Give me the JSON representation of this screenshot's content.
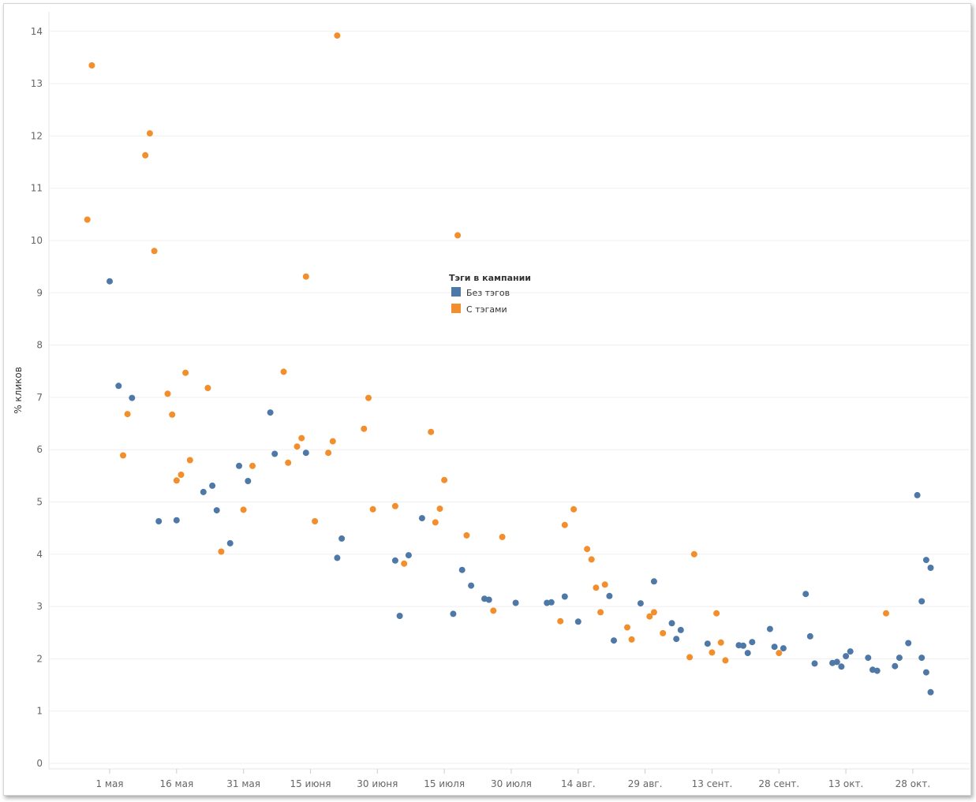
{
  "chart_data": {
    "type": "scatter",
    "title": "",
    "xlabel": "",
    "ylabel": "% кликов",
    "ylim": [
      0,
      14.4
    ],
    "y_ticks": [
      0,
      1,
      2,
      3,
      4,
      5,
      6,
      7,
      8,
      9,
      10,
      11,
      12,
      13,
      14
    ],
    "x_range": [
      "2019-04-20",
      "2019-11-08"
    ],
    "x_ticks": [
      {
        "date": "2019-05-01",
        "label": "1 мая"
      },
      {
        "date": "2019-05-16",
        "label": "16 мая"
      },
      {
        "date": "2019-05-31",
        "label": "31 мая"
      },
      {
        "date": "2019-06-15",
        "label": "15 июня"
      },
      {
        "date": "2019-06-30",
        "label": "30 июня"
      },
      {
        "date": "2019-07-15",
        "label": "15 июля"
      },
      {
        "date": "2019-07-30",
        "label": "30 июля"
      },
      {
        "date": "2019-08-14",
        "label": "14 авг."
      },
      {
        "date": "2019-08-29",
        "label": "29 авг."
      },
      {
        "date": "2019-09-13",
        "label": "13 сент."
      },
      {
        "date": "2019-09-28",
        "label": "28 сент."
      },
      {
        "date": "2019-10-13",
        "label": "13 окт."
      },
      {
        "date": "2019-10-28",
        "label": "28 окт."
      }
    ],
    "grid": true,
    "legend": {
      "title": "Тэги в кампании",
      "placement": "center"
    },
    "series": [
      {
        "name": "Без тэгов",
        "color": "#4e79a7",
        "points": [
          {
            "x": "2019-05-01",
            "y": 9.22
          },
          {
            "x": "2019-05-03",
            "y": 7.22
          },
          {
            "x": "2019-05-06",
            "y": 6.99
          },
          {
            "x": "2019-05-12",
            "y": 4.63
          },
          {
            "x": "2019-05-16",
            "y": 4.65
          },
          {
            "x": "2019-05-22",
            "y": 5.19
          },
          {
            "x": "2019-05-24",
            "y": 5.31
          },
          {
            "x": "2019-05-25",
            "y": 4.84
          },
          {
            "x": "2019-05-28",
            "y": 4.21
          },
          {
            "x": "2019-05-30",
            "y": 5.69
          },
          {
            "x": "2019-06-01",
            "y": 5.4
          },
          {
            "x": "2019-06-06",
            "y": 6.71
          },
          {
            "x": "2019-06-07",
            "y": 5.92
          },
          {
            "x": "2019-06-14",
            "y": 5.94
          },
          {
            "x": "2019-06-21",
            "y": 3.93
          },
          {
            "x": "2019-06-22",
            "y": 4.3
          },
          {
            "x": "2019-07-04",
            "y": 3.88
          },
          {
            "x": "2019-07-05",
            "y": 2.82
          },
          {
            "x": "2019-07-07",
            "y": 3.98
          },
          {
            "x": "2019-07-10",
            "y": 4.69
          },
          {
            "x": "2019-07-17",
            "y": 2.86
          },
          {
            "x": "2019-07-19",
            "y": 3.7
          },
          {
            "x": "2019-07-21",
            "y": 3.4
          },
          {
            "x": "2019-07-24",
            "y": 3.15
          },
          {
            "x": "2019-07-25",
            "y": 3.13
          },
          {
            "x": "2019-07-31",
            "y": 3.07
          },
          {
            "x": "2019-08-07",
            "y": 3.07
          },
          {
            "x": "2019-08-08",
            "y": 3.08
          },
          {
            "x": "2019-08-11",
            "y": 3.19
          },
          {
            "x": "2019-08-14",
            "y": 2.71
          },
          {
            "x": "2019-08-21",
            "y": 3.2
          },
          {
            "x": "2019-08-22",
            "y": 2.35
          },
          {
            "x": "2019-08-28",
            "y": 3.06
          },
          {
            "x": "2019-08-31",
            "y": 3.48
          },
          {
            "x": "2019-09-04",
            "y": 2.68
          },
          {
            "x": "2019-09-05",
            "y": 2.38
          },
          {
            "x": "2019-09-06",
            "y": 2.55
          },
          {
            "x": "2019-09-12",
            "y": 2.29
          },
          {
            "x": "2019-09-19",
            "y": 2.26
          },
          {
            "x": "2019-09-20",
            "y": 2.25
          },
          {
            "x": "2019-09-21",
            "y": 2.11
          },
          {
            "x": "2019-09-22",
            "y": 2.32
          },
          {
            "x": "2019-09-26",
            "y": 2.57
          },
          {
            "x": "2019-09-27",
            "y": 2.23
          },
          {
            "x": "2019-09-29",
            "y": 2.2
          },
          {
            "x": "2019-10-04",
            "y": 3.24
          },
          {
            "x": "2019-10-05",
            "y": 2.43
          },
          {
            "x": "2019-10-06",
            "y": 1.91
          },
          {
            "x": "2019-10-10",
            "y": 1.92
          },
          {
            "x": "2019-10-11",
            "y": 1.94
          },
          {
            "x": "2019-10-12",
            "y": 1.85
          },
          {
            "x": "2019-10-13",
            "y": 2.05
          },
          {
            "x": "2019-10-14",
            "y": 2.14
          },
          {
            "x": "2019-10-18",
            "y": 2.02
          },
          {
            "x": "2019-10-19",
            "y": 1.79
          },
          {
            "x": "2019-10-20",
            "y": 1.77
          },
          {
            "x": "2019-10-24",
            "y": 1.86
          },
          {
            "x": "2019-10-25",
            "y": 2.02
          },
          {
            "x": "2019-10-27",
            "y": 2.3
          },
          {
            "x": "2019-10-29",
            "y": 5.13
          },
          {
            "x": "2019-10-30",
            "y": 3.1
          },
          {
            "x": "2019-10-30",
            "y": 2.02
          },
          {
            "x": "2019-10-31",
            "y": 3.89
          },
          {
            "x": "2019-10-31",
            "y": 1.74
          },
          {
            "x": "2019-11-01",
            "y": 3.74
          },
          {
            "x": "2019-11-01",
            "y": 1.36
          }
        ]
      },
      {
        "name": "С тэгами",
        "color": "#f28e2b",
        "points": [
          {
            "x": "2019-04-26",
            "y": 10.4
          },
          {
            "x": "2019-04-27",
            "y": 13.35
          },
          {
            "x": "2019-05-04",
            "y": 5.89
          },
          {
            "x": "2019-05-05",
            "y": 6.68
          },
          {
            "x": "2019-05-09",
            "y": 11.63
          },
          {
            "x": "2019-05-10",
            "y": 12.05
          },
          {
            "x": "2019-05-11",
            "y": 9.8
          },
          {
            "x": "2019-05-14",
            "y": 7.07
          },
          {
            "x": "2019-05-15",
            "y": 6.67
          },
          {
            "x": "2019-05-16",
            "y": 5.41
          },
          {
            "x": "2019-05-17",
            "y": 5.52
          },
          {
            "x": "2019-05-18",
            "y": 7.47
          },
          {
            "x": "2019-05-19",
            "y": 5.8
          },
          {
            "x": "2019-05-23",
            "y": 7.18
          },
          {
            "x": "2019-05-26",
            "y": 4.05
          },
          {
            "x": "2019-05-31",
            "y": 4.85
          },
          {
            "x": "2019-06-02",
            "y": 5.69
          },
          {
            "x": "2019-06-09",
            "y": 7.49
          },
          {
            "x": "2019-06-10",
            "y": 5.75
          },
          {
            "x": "2019-06-12",
            "y": 6.06
          },
          {
            "x": "2019-06-13",
            "y": 6.22
          },
          {
            "x": "2019-06-14",
            "y": 9.31
          },
          {
            "x": "2019-06-16",
            "y": 4.63
          },
          {
            "x": "2019-06-19",
            "y": 5.94
          },
          {
            "x": "2019-06-20",
            "y": 6.16
          },
          {
            "x": "2019-06-21",
            "y": 13.92
          },
          {
            "x": "2019-06-27",
            "y": 6.4
          },
          {
            "x": "2019-06-28",
            "y": 6.99
          },
          {
            "x": "2019-06-29",
            "y": 4.86
          },
          {
            "x": "2019-07-04",
            "y": 4.92
          },
          {
            "x": "2019-07-06",
            "y": 3.82
          },
          {
            "x": "2019-07-12",
            "y": 6.34
          },
          {
            "x": "2019-07-13",
            "y": 4.61
          },
          {
            "x": "2019-07-14",
            "y": 4.87
          },
          {
            "x": "2019-07-15",
            "y": 5.42
          },
          {
            "x": "2019-07-18",
            "y": 10.1
          },
          {
            "x": "2019-07-20",
            "y": 4.36
          },
          {
            "x": "2019-07-26",
            "y": 2.92
          },
          {
            "x": "2019-07-28",
            "y": 4.33
          },
          {
            "x": "2019-08-10",
            "y": 2.72
          },
          {
            "x": "2019-08-11",
            "y": 4.56
          },
          {
            "x": "2019-08-13",
            "y": 4.86
          },
          {
            "x": "2019-08-16",
            "y": 4.1
          },
          {
            "x": "2019-08-17",
            "y": 3.9
          },
          {
            "x": "2019-08-18",
            "y": 3.36
          },
          {
            "x": "2019-08-19",
            "y": 2.89
          },
          {
            "x": "2019-08-20",
            "y": 3.42
          },
          {
            "x": "2019-08-25",
            "y": 2.6
          },
          {
            "x": "2019-08-26",
            "y": 2.37
          },
          {
            "x": "2019-08-30",
            "y": 2.81
          },
          {
            "x": "2019-08-31",
            "y": 2.89
          },
          {
            "x": "2019-09-02",
            "y": 2.49
          },
          {
            "x": "2019-09-08",
            "y": 2.03
          },
          {
            "x": "2019-09-09",
            "y": 4.0
          },
          {
            "x": "2019-09-13",
            "y": 2.12
          },
          {
            "x": "2019-09-14",
            "y": 2.87
          },
          {
            "x": "2019-09-15",
            "y": 2.31
          },
          {
            "x": "2019-09-16",
            "y": 1.97
          },
          {
            "x": "2019-09-28",
            "y": 2.11
          },
          {
            "x": "2019-10-22",
            "y": 2.87
          }
        ]
      }
    ]
  }
}
